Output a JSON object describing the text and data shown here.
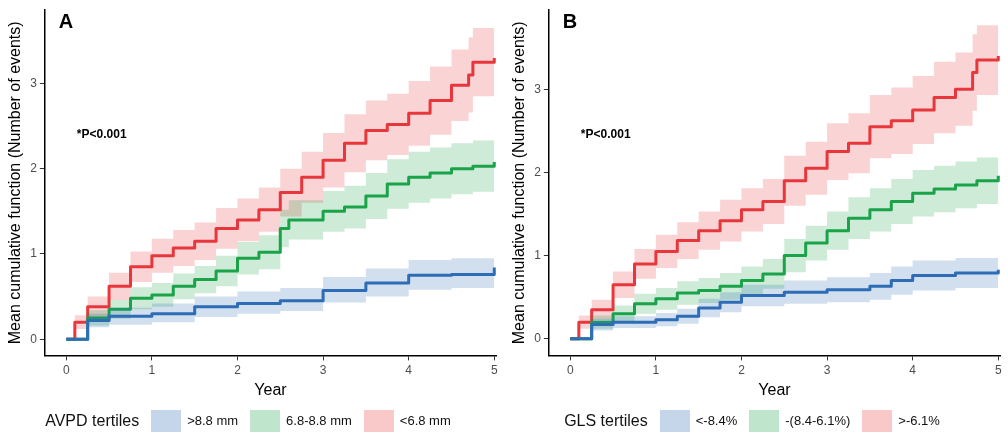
{
  "chart_data": [
    {
      "type": "step",
      "title": "A",
      "xlabel": "Year",
      "ylabel": "Mean cumulative function (Number of events)",
      "legend_title": "AVPD tertiles",
      "legend": "bottom",
      "annotations": [
        "*P<0.001"
      ],
      "xlim": [
        -0.25,
        5.02
      ],
      "ylim": [
        -0.19,
        3.86
      ],
      "xticks": [
        0,
        1,
        2,
        3,
        4,
        5
      ],
      "yticks": [
        0,
        1,
        2,
        3
      ],
      "grid": false,
      "series": [
        {
          "name": ">8.8 mm",
          "color": "#2f6db5",
          "x": [
            0,
            0.25,
            0.5,
            1,
            1.5,
            2,
            2.5,
            3,
            3.5,
            4,
            4.5,
            5
          ],
          "values": [
            0,
            0.22,
            0.27,
            0.3,
            0.38,
            0.42,
            0.45,
            0.57,
            0.66,
            0.75,
            0.76,
            0.84
          ],
          "lower": [
            0,
            0.14,
            0.17,
            0.2,
            0.26,
            0.3,
            0.33,
            0.43,
            0.5,
            0.58,
            0.6,
            0.66
          ],
          "upper": [
            0,
            0.3,
            0.37,
            0.42,
            0.5,
            0.56,
            0.6,
            0.73,
            0.83,
            0.93,
            0.95,
            1.03
          ]
        },
        {
          "name": "6.8-8.8 mm",
          "color": "#1ba34b",
          "x": [
            0,
            0.25,
            0.5,
            0.75,
            1,
            1.25,
            1.5,
            1.75,
            2,
            2.25,
            2.5,
            2.6,
            3,
            3.25,
            3.5,
            3.75,
            4,
            4.25,
            4.5,
            4.75,
            5
          ],
          "values": [
            0,
            0.25,
            0.35,
            0.48,
            0.52,
            0.62,
            0.7,
            0.8,
            0.95,
            1.02,
            1.3,
            1.4,
            1.5,
            1.55,
            1.68,
            1.82,
            1.9,
            1.95,
            2.0,
            2.03,
            2.08
          ],
          "lower": [
            0,
            0.16,
            0.24,
            0.35,
            0.38,
            0.47,
            0.54,
            0.62,
            0.76,
            0.82,
            1.08,
            1.17,
            1.26,
            1.3,
            1.41,
            1.53,
            1.6,
            1.65,
            1.7,
            1.73,
            1.78
          ],
          "upper": [
            0,
            0.34,
            0.46,
            0.61,
            0.66,
            0.77,
            0.86,
            0.98,
            1.14,
            1.22,
            1.52,
            1.63,
            1.74,
            1.8,
            1.95,
            2.11,
            2.2,
            2.25,
            2.3,
            2.33,
            2.38
          ]
        },
        {
          "name": "<6.8 mm",
          "color": "#e8383d",
          "x": [
            0,
            0.1,
            0.25,
            0.5,
            0.75,
            1,
            1.25,
            1.5,
            1.75,
            2,
            2.25,
            2.5,
            2.75,
            3,
            3.25,
            3.5,
            3.75,
            4,
            4.25,
            4.5,
            4.7,
            4.75,
            5
          ],
          "values": [
            0,
            0.2,
            0.38,
            0.62,
            0.85,
            0.98,
            1.07,
            1.15,
            1.3,
            1.4,
            1.52,
            1.72,
            1.9,
            2.1,
            2.3,
            2.45,
            2.52,
            2.65,
            2.8,
            2.98,
            3.1,
            3.25,
            3.3
          ],
          "lower": [
            0,
            0.12,
            0.26,
            0.46,
            0.67,
            0.78,
            0.86,
            0.93,
            1.06,
            1.15,
            1.26,
            1.44,
            1.6,
            1.78,
            1.96,
            2.1,
            2.16,
            2.27,
            2.4,
            2.56,
            2.66,
            2.85,
            2.9
          ],
          "upper": [
            0,
            0.28,
            0.5,
            0.78,
            1.03,
            1.18,
            1.28,
            1.37,
            1.54,
            1.65,
            1.78,
            2.0,
            2.2,
            2.42,
            2.64,
            2.8,
            2.88,
            3.03,
            3.2,
            3.4,
            3.54,
            3.65,
            3.7
          ]
        }
      ]
    },
    {
      "type": "step",
      "title": "B",
      "xlabel": "Year",
      "ylabel": "Mean cumulative function (Number of events)",
      "legend_title": "GLS tertiles",
      "legend": "bottom",
      "annotations": [
        "*P<0.001"
      ],
      "xlim": [
        -0.25,
        5.02
      ],
      "ylim": [
        -0.2,
        3.95
      ],
      "xticks": [
        0,
        1,
        2,
        3,
        4,
        5
      ],
      "yticks": [
        0,
        1,
        2,
        3
      ],
      "grid": false,
      "series": [
        {
          "name": "<-8.4%",
          "color": "#2f6db5",
          "x": [
            0,
            0.25,
            0.5,
            1,
            1.25,
            1.5,
            1.75,
            2,
            2.5,
            3,
            3.5,
            3.75,
            4,
            4.5,
            5
          ],
          "values": [
            0,
            0.17,
            0.2,
            0.23,
            0.27,
            0.37,
            0.44,
            0.52,
            0.56,
            0.59,
            0.63,
            0.7,
            0.76,
            0.79,
            0.83
          ],
          "lower": [
            0,
            0.1,
            0.13,
            0.15,
            0.18,
            0.26,
            0.32,
            0.39,
            0.42,
            0.44,
            0.47,
            0.53,
            0.58,
            0.61,
            0.64
          ],
          "upper": [
            0,
            0.24,
            0.27,
            0.31,
            0.36,
            0.48,
            0.56,
            0.65,
            0.7,
            0.74,
            0.79,
            0.87,
            0.94,
            0.97,
            1.02
          ]
        },
        {
          "name": "-(8.4-6.1%)",
          "color": "#1ba34b",
          "x": [
            0,
            0.25,
            0.5,
            0.75,
            1,
            1.25,
            1.5,
            1.75,
            2,
            2.25,
            2.5,
            2.75,
            3,
            3.25,
            3.5,
            3.75,
            4,
            4.25,
            4.5,
            4.75,
            5
          ],
          "values": [
            0,
            0.2,
            0.3,
            0.42,
            0.48,
            0.55,
            0.58,
            0.63,
            0.7,
            0.78,
            1.0,
            1.15,
            1.3,
            1.45,
            1.55,
            1.65,
            1.75,
            1.8,
            1.85,
            1.9,
            1.96
          ],
          "lower": [
            0,
            0.12,
            0.2,
            0.3,
            0.35,
            0.41,
            0.43,
            0.47,
            0.53,
            0.6,
            0.8,
            0.94,
            1.07,
            1.2,
            1.29,
            1.38,
            1.47,
            1.52,
            1.57,
            1.62,
            1.67
          ],
          "upper": [
            0,
            0.28,
            0.4,
            0.54,
            0.61,
            0.69,
            0.73,
            0.79,
            0.87,
            0.96,
            1.2,
            1.36,
            1.53,
            1.7,
            1.81,
            1.92,
            2.03,
            2.08,
            2.13,
            2.18,
            2.27
          ]
        },
        {
          "name": ">-6.1%",
          "color": "#e8383d",
          "x": [
            0,
            0.1,
            0.25,
            0.5,
            0.75,
            1,
            1.25,
            1.5,
            1.75,
            2,
            2.25,
            2.5,
            2.75,
            3,
            3.25,
            3.5,
            3.75,
            4,
            4.25,
            4.5,
            4.7,
            4.75,
            5
          ],
          "values": [
            0,
            0.2,
            0.35,
            0.65,
            0.9,
            1.05,
            1.18,
            1.3,
            1.42,
            1.55,
            1.65,
            1.9,
            2.05,
            2.25,
            2.35,
            2.55,
            2.62,
            2.75,
            2.9,
            3.0,
            3.2,
            3.35,
            3.4
          ],
          "lower": [
            0,
            0.12,
            0.23,
            0.49,
            0.72,
            0.85,
            0.96,
            1.07,
            1.17,
            1.29,
            1.38,
            1.6,
            1.73,
            1.91,
            1.99,
            2.17,
            2.22,
            2.34,
            2.47,
            2.56,
            2.74,
            2.93,
            2.98
          ],
          "upper": [
            0,
            0.28,
            0.47,
            0.81,
            1.08,
            1.25,
            1.4,
            1.53,
            1.67,
            1.81,
            1.92,
            2.2,
            2.37,
            2.59,
            2.71,
            2.93,
            3.02,
            3.16,
            3.33,
            3.44,
            3.66,
            3.77,
            3.8
          ]
        }
      ]
    }
  ]
}
